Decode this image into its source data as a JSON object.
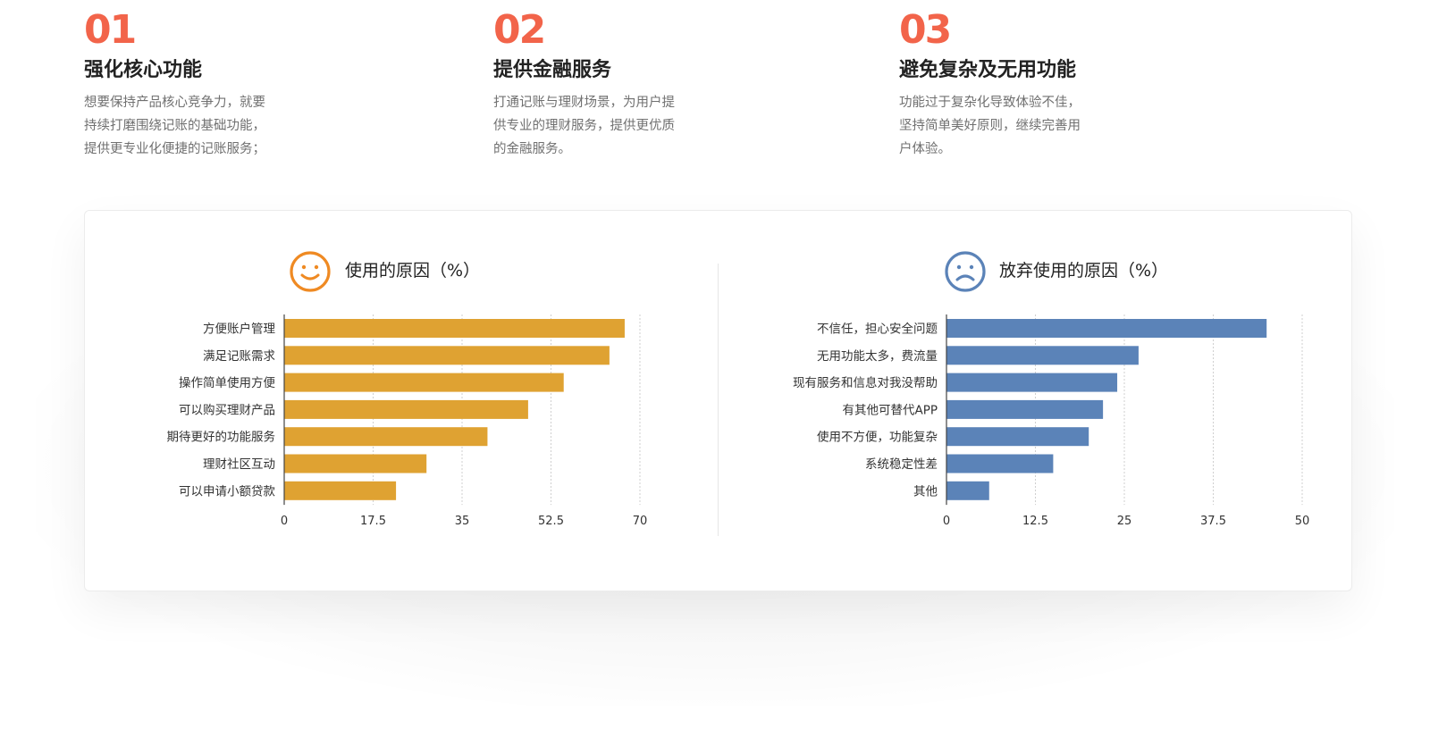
{
  "features": [
    {
      "num": "01",
      "title": "强化核心功能",
      "desc": "想要保持产品核心竞争力，就要\n持续打磨围绕记账的基础功能，\n提供更专业化便捷的记账服务；"
    },
    {
      "num": "02",
      "title": "提供金融服务",
      "desc": "打通记账与理财场景，为用户提\n供专业的理财服务，提供更优质\n的金融服务。"
    },
    {
      "num": "03",
      "title": "避免复杂及无用功能",
      "desc": "功能过于复杂化导致体验不佳，\n坚持简单美好原则，继续完善用\n户体验。"
    }
  ],
  "colors": {
    "accent": "#f2644a",
    "use_bar": "#dfa232",
    "use_icon": "#ef8a23",
    "quit_bar": "#5b83b8",
    "quit_icon": "#5b83b8"
  },
  "icons": {
    "use": "smile-face-icon",
    "quit": "sad-face-icon"
  },
  "chart_data": [
    {
      "type": "bar",
      "orientation": "horizontal",
      "title": "使用的原因（%）",
      "categories": [
        "方便账户管理",
        "满足记账需求",
        "操作简单使用方便",
        "可以购买理财产品",
        "期待更好的功能服务",
        "理财社区互动",
        "可以申请小额贷款"
      ],
      "values": [
        67,
        64,
        55,
        48,
        40,
        28,
        22
      ],
      "xlim": [
        0,
        70
      ],
      "ticks": [
        "0",
        "17.5",
        "35",
        "52.5",
        "70"
      ],
      "grid": true,
      "color": "#dfa232"
    },
    {
      "type": "bar",
      "orientation": "horizontal",
      "title": "放弃使用的原因（%）",
      "categories": [
        "不信任，担心安全问题",
        "无用功能太多，费流量",
        "现有服务和信息对我没帮助",
        "有其他可替代APP",
        "使用不方便，功能复杂",
        "系统稳定性差",
        "其他"
      ],
      "values": [
        45,
        27,
        24,
        22,
        20,
        15,
        6
      ],
      "xlim": [
        0,
        50
      ],
      "ticks": [
        "0",
        "12.5",
        "25",
        "37.5",
        "50"
      ],
      "grid": true,
      "color": "#5b83b8"
    }
  ]
}
